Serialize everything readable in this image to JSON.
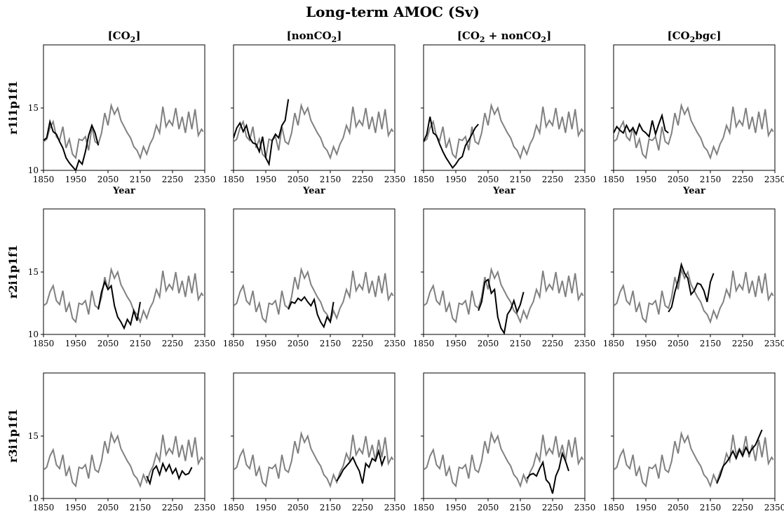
{
  "figure": {
    "title": "Long-term AMOC (Sv)"
  },
  "chart_data": {
    "type": "line",
    "xlim": [
      1850,
      2350
    ],
    "ylim": [
      10,
      20
    ],
    "x_ticks": [
      1850,
      1950,
      2050,
      2150,
      2250,
      2350
    ],
    "y_ticks": [
      10,
      15
    ],
    "grid": false,
    "column_titles": [
      {
        "pre": "[CO",
        "sub": "2",
        "post": "]",
        "sub2": "",
        "post2": ""
      },
      {
        "pre": "[nonCO",
        "sub": "2",
        "post": "]",
        "sub2": "",
        "post2": ""
      },
      {
        "pre": "[CO",
        "sub": "2",
        "post": " + nonCO",
        "sub2": "2",
        "post2": "]"
      },
      {
        "pre": "[CO",
        "sub": "2",
        "post": "bgc]",
        "sub2": "",
        "post2": ""
      }
    ],
    "row_labels": [
      "r1i1p1f1",
      "r2i1p1f1",
      "r3i1p1f1"
    ],
    "xlabel": "Year",
    "colors": {
      "reference": "#808080",
      "member": "#000000"
    },
    "reference_series": {
      "x": [
        1850,
        1860,
        1870,
        1880,
        1890,
        1900,
        1910,
        1920,
        1930,
        1940,
        1950,
        1960,
        1970,
        1980,
        1990,
        2000,
        2010,
        2020,
        2030,
        2040,
        2050,
        2060,
        2070,
        2080,
        2090,
        2100,
        2110,
        2120,
        2130,
        2140,
        2150,
        2160,
        2170,
        2180,
        2190,
        2200,
        2210,
        2220,
        2230,
        2240,
        2250,
        2260,
        2270,
        2280,
        2290,
        2300,
        2310,
        2320,
        2330,
        2340,
        2345
      ],
      "y": [
        12.3,
        12.5,
        13.4,
        13.9,
        12.7,
        12.4,
        13.5,
        11.8,
        12.5,
        11.3,
        11.0,
        12.5,
        12.4,
        12.7,
        11.6,
        13.5,
        12.3,
        12.1,
        13.0,
        14.6,
        13.6,
        15.2,
        14.5,
        15.0,
        14.0,
        13.5,
        13.0,
        12.6,
        11.9,
        11.6,
        11.0,
        11.9,
        11.3,
        12.1,
        12.6,
        13.6,
        13.0,
        15.1,
        13.5,
        14.0,
        13.6,
        15.0,
        13.3,
        14.3,
        13.0,
        14.7,
        13.3,
        14.9,
        12.8,
        13.3,
        13.1
      ]
    },
    "panels": [
      [
        {
          "x": [
            1850,
            1860,
            1870,
            1880,
            1890,
            1900,
            1910,
            1920,
            1930,
            1940,
            1950,
            1960,
            1970,
            1980,
            1990,
            2000,
            2010,
            2020
          ],
          "y": [
            12.4,
            12.6,
            13.9,
            13.1,
            12.9,
            12.3,
            11.8,
            11.0,
            10.6,
            10.3,
            10.0,
            10.8,
            10.5,
            11.5,
            12.8,
            13.6,
            13.0,
            12.0
          ]
        },
        {
          "x": [
            1850,
            1860,
            1870,
            1880,
            1890,
            1900,
            1910,
            1920,
            1930,
            1940,
            1950,
            1960,
            1970,
            1980,
            1990,
            2000,
            2010,
            2020
          ],
          "y": [
            12.6,
            13.4,
            13.8,
            13.1,
            13.6,
            12.6,
            12.2,
            12.1,
            11.5,
            12.7,
            11.0,
            10.5,
            12.4,
            12.9,
            12.6,
            13.6,
            14.0,
            15.7
          ]
        },
        {
          "x": [
            1850,
            1860,
            1870,
            1880,
            1890,
            1900,
            1910,
            1920,
            1930,
            1940,
            1950,
            1960,
            1970,
            1980,
            1990,
            2000,
            2010,
            2020
          ],
          "y": [
            12.3,
            12.9,
            14.3,
            13.0,
            12.8,
            12.1,
            11.5,
            11.0,
            10.6,
            10.2,
            10.5,
            10.9,
            11.1,
            12.0,
            12.4,
            12.9,
            13.4,
            13.7
          ]
        },
        {
          "x": [
            1850,
            1860,
            1870,
            1880,
            1890,
            1900,
            1910,
            1920,
            1930,
            1940,
            1950,
            1960,
            1970,
            1980,
            1990,
            2000,
            2010,
            2020
          ],
          "y": [
            13.0,
            13.5,
            13.2,
            13.0,
            13.6,
            13.1,
            13.4,
            12.9,
            13.7,
            13.2,
            13.0,
            12.7,
            14.0,
            12.9,
            13.7,
            14.4,
            13.2,
            13.0
          ]
        }
      ],
      [
        {
          "x": [
            2020,
            2030,
            2040,
            2050,
            2060,
            2070,
            2080,
            2090,
            2100,
            2110,
            2120,
            2130,
            2140,
            2150
          ],
          "y": [
            12.0,
            13.4,
            14.2,
            13.6,
            13.9,
            12.3,
            11.4,
            11.0,
            10.5,
            11.2,
            10.8,
            11.9,
            11.1,
            12.6
          ]
        },
        {
          "x": [
            2020,
            2030,
            2040,
            2050,
            2060,
            2070,
            2080,
            2090,
            2100,
            2110,
            2120,
            2130,
            2140,
            2150,
            2160
          ],
          "y": [
            12.0,
            12.6,
            12.5,
            12.9,
            12.7,
            13.0,
            12.6,
            12.3,
            12.8,
            11.6,
            11.0,
            10.6,
            11.4,
            11.0,
            12.6
          ]
        },
        {
          "x": [
            2020,
            2030,
            2040,
            2050,
            2060,
            2070,
            2080,
            2090,
            2100,
            2110,
            2120,
            2130,
            2140,
            2150,
            2160
          ],
          "y": [
            11.9,
            12.6,
            14.2,
            14.4,
            13.3,
            13.6,
            11.4,
            10.5,
            10.1,
            11.6,
            12.0,
            12.7,
            11.8,
            12.4,
            13.4
          ]
        },
        {
          "x": [
            2020,
            2030,
            2040,
            2050,
            2060,
            2070,
            2080,
            2090,
            2100,
            2110,
            2120,
            2130,
            2140,
            2150,
            2160
          ],
          "y": [
            11.8,
            12.2,
            13.4,
            14.3,
            15.6,
            14.9,
            14.5,
            13.2,
            13.5,
            14.1,
            14.0,
            13.5,
            12.6,
            14.2,
            14.9
          ]
        }
      ],
      [
        {
          "x": [
            2170,
            2180,
            2190,
            2200,
            2210,
            2220,
            2230,
            2240,
            2250,
            2260,
            2270,
            2280,
            2290,
            2300,
            2310
          ],
          "y": [
            11.8,
            11.2,
            12.3,
            12.6,
            11.9,
            12.8,
            12.2,
            12.7,
            12.0,
            12.4,
            11.6,
            12.2,
            11.9,
            12.0,
            12.5
          ]
        },
        {
          "x": [
            2170,
            2180,
            2190,
            2200,
            2210,
            2220,
            2230,
            2240,
            2250,
            2260,
            2270,
            2280,
            2290,
            2300,
            2310,
            2320
          ],
          "y": [
            11.4,
            11.8,
            12.3,
            12.6,
            12.9,
            13.3,
            12.7,
            12.2,
            11.2,
            12.8,
            12.5,
            13.2,
            13.0,
            13.8,
            12.7,
            13.4
          ]
        },
        {
          "x": [
            2170,
            2180,
            2190,
            2200,
            2210,
            2220,
            2230,
            2240,
            2250,
            2260,
            2270,
            2280,
            2290,
            2300
          ],
          "y": [
            11.6,
            11.9,
            12.0,
            11.8,
            12.4,
            12.9,
            11.5,
            11.2,
            10.4,
            11.8,
            12.4,
            13.6,
            13.0,
            12.2
          ]
        },
        {
          "x": [
            2170,
            2180,
            2190,
            2200,
            2210,
            2220,
            2230,
            2240,
            2250,
            2260,
            2270,
            2280,
            2290,
            2300,
            2310
          ],
          "y": [
            11.2,
            11.8,
            12.6,
            12.9,
            13.3,
            13.8,
            13.2,
            13.9,
            13.4,
            14.1,
            13.6,
            14.0,
            14.3,
            14.9,
            15.5
          ]
        }
      ]
    ]
  }
}
